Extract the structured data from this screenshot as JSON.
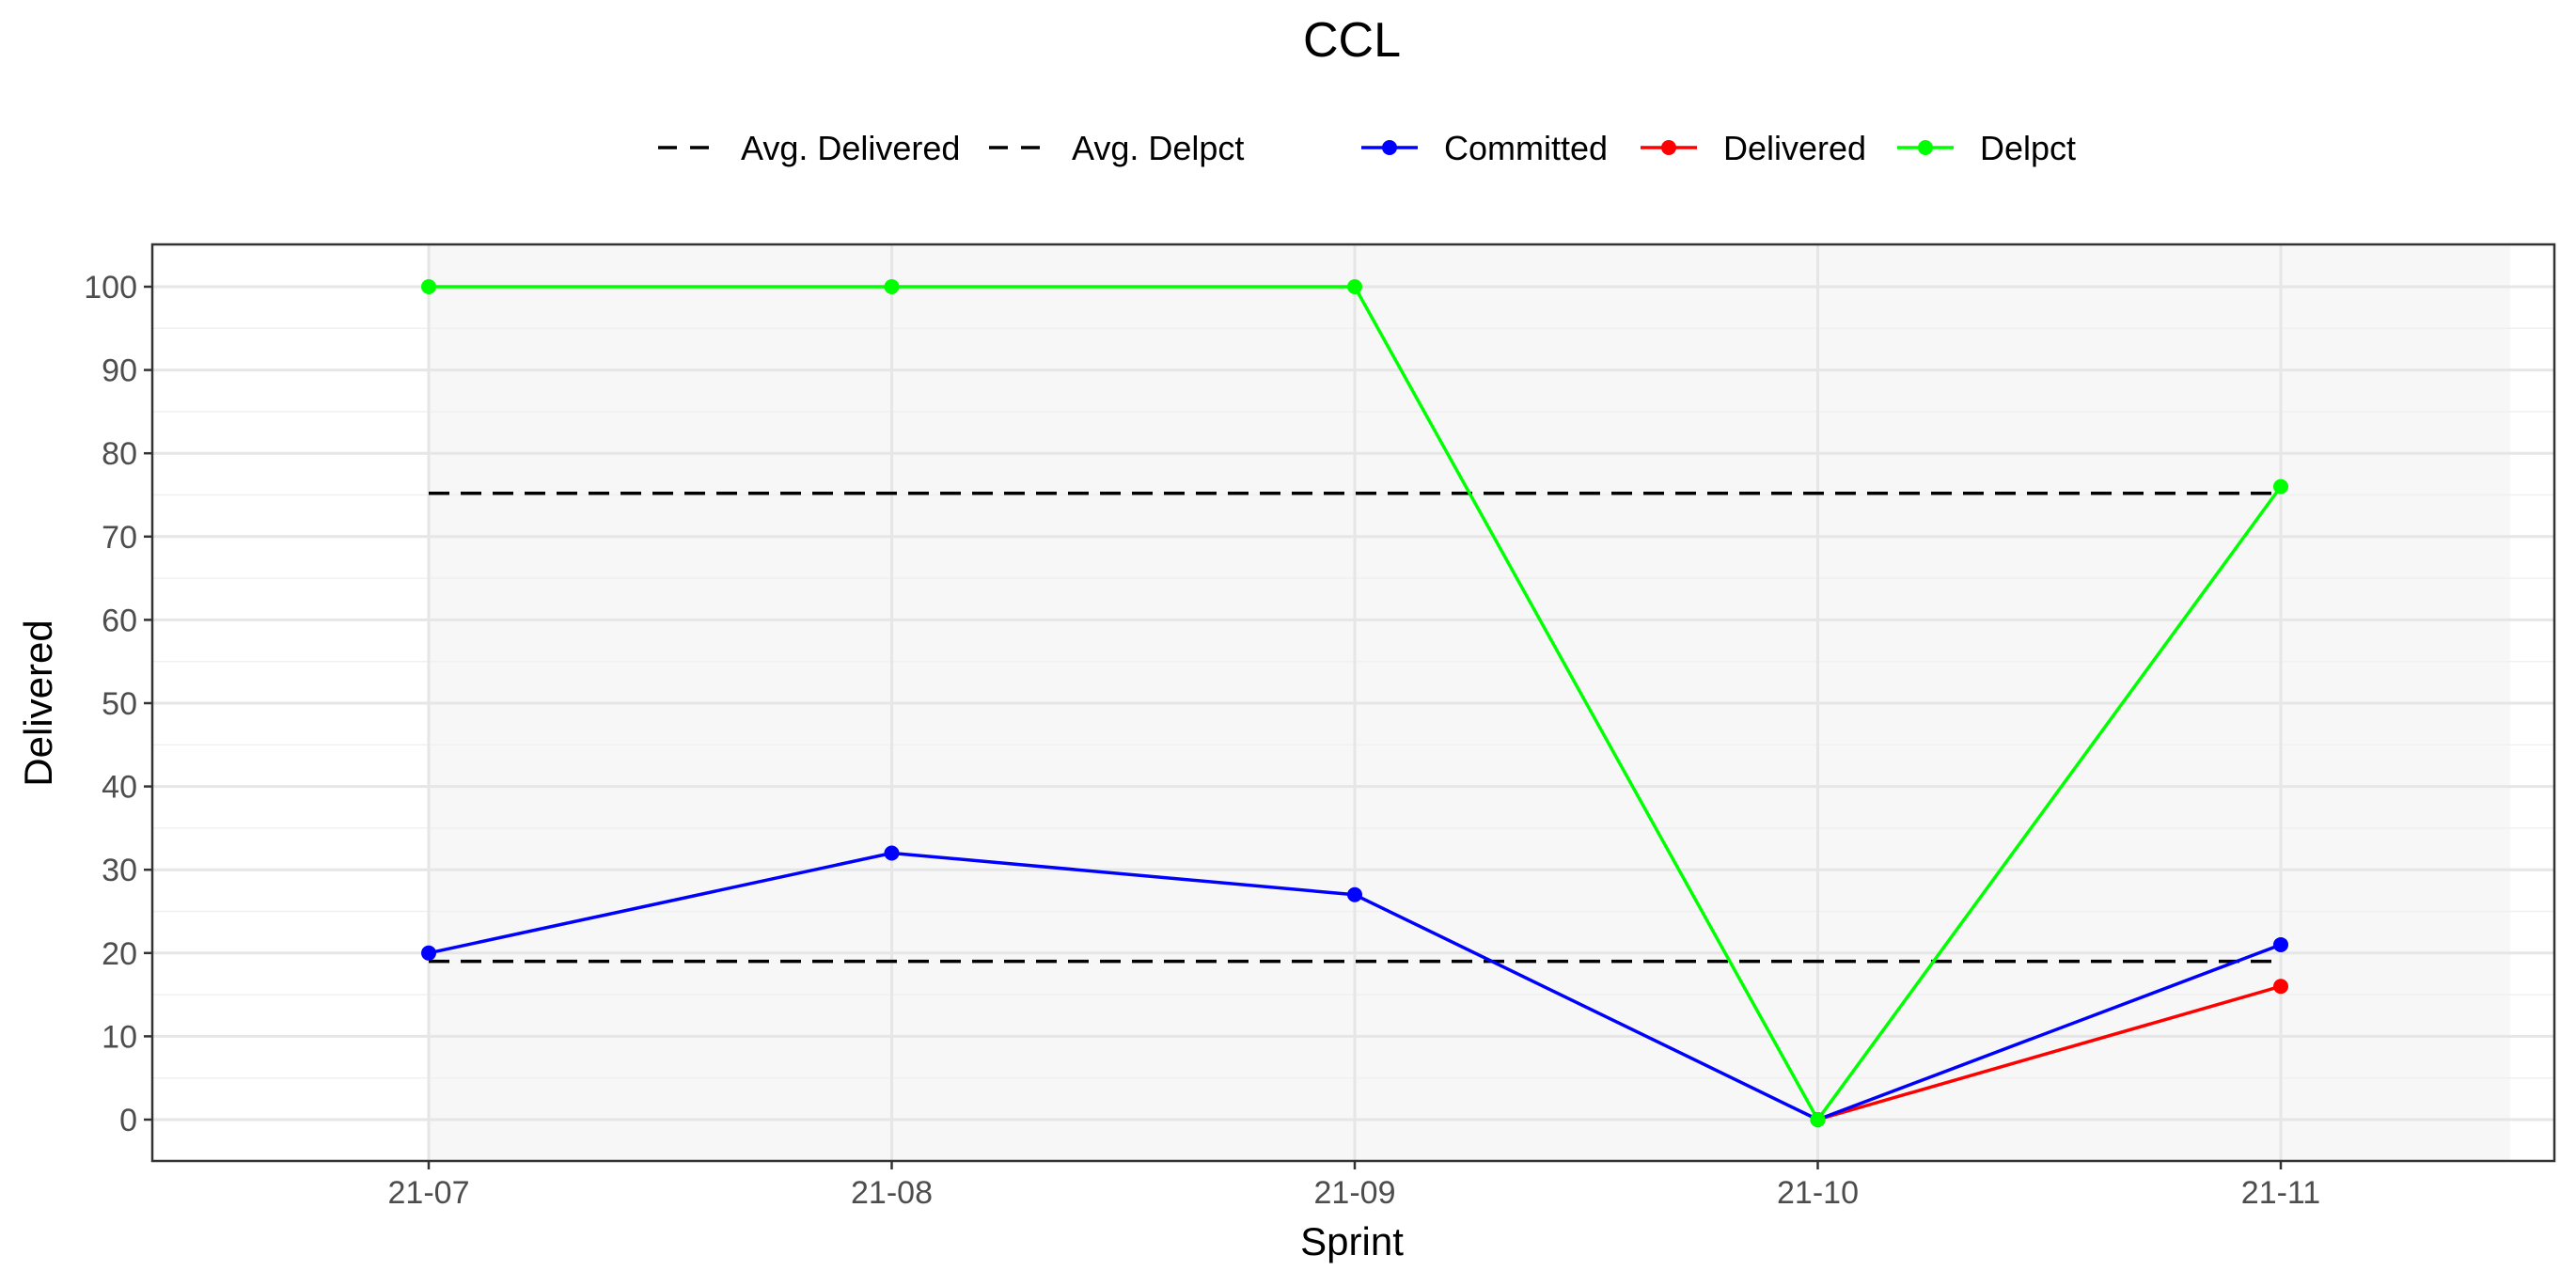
{
  "chart_data": {
    "type": "line",
    "title": "CCL",
    "xlabel": "Sprint",
    "ylabel": "Delivered",
    "categories": [
      "21-07",
      "21-08",
      "21-09",
      "21-10",
      "21-11"
    ],
    "ylim": [
      -5,
      105
    ],
    "yticks": [
      0,
      10,
      20,
      30,
      40,
      50,
      60,
      70,
      80,
      90,
      100
    ],
    "grid": true,
    "legend_position": "top",
    "series": [
      {
        "name": "Committed",
        "color": "#0000ff",
        "values": [
          20,
          32,
          27,
          0,
          21
        ]
      },
      {
        "name": "Delivered",
        "color": "#ff0000",
        "values": [
          null,
          null,
          null,
          0,
          16
        ]
      },
      {
        "name": "Delpct",
        "color": "#00ff00",
        "values": [
          100,
          100,
          100,
          0,
          76
        ]
      }
    ],
    "reference_lines": [
      {
        "name": "Avg. Delivered",
        "color": "#000000",
        "style": "dashed",
        "value": 19
      },
      {
        "name": "Avg. Delpct",
        "color": "#000000",
        "style": "dashed",
        "value": 75.2
      }
    ],
    "legend": {
      "linetype_items": [
        "Avg. Delivered",
        "Avg. Delpct"
      ],
      "color_items": [
        "Committed",
        "Delivered",
        "Delpct"
      ]
    }
  }
}
